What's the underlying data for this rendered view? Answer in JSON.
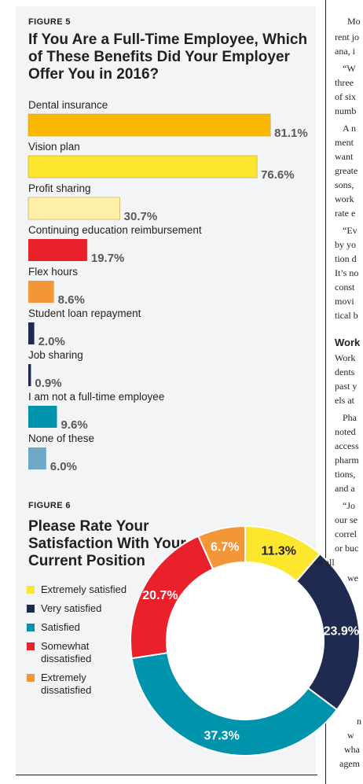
{
  "figure5": {
    "label": "FIGURE 5",
    "title": "If You Are a Full-Time Employee, Which of These Benefits Did Your Employer Offer You in 2016?"
  },
  "figure6": {
    "label": "FIGURE 6",
    "title": "Please Rate Your Satisfaction With Your Current Position"
  },
  "chart_data": [
    {
      "type": "bar",
      "orientation": "horizontal",
      "title": "If You Are a Full-Time Employee, Which of These Benefits Did Your Employer Offer You in 2016?",
      "unit": "%",
      "categories": [
        "Dental insurance",
        "Vision plan",
        "Profit sharing",
        "Continuing education reimbursement",
        "Flex hours",
        "Student loan repayment",
        "Job sharing",
        "I am not a full-time employee",
        "None of these"
      ],
      "values": [
        81.1,
        76.6,
        30.7,
        19.7,
        8.6,
        2.0,
        0.9,
        9.6,
        6.0
      ],
      "value_labels": [
        "81.1%",
        "76.6%",
        "30.7%",
        "19.7%",
        "8.6%",
        "2.0%",
        "0.9%",
        "9.6%",
        "6.0%"
      ],
      "colors": [
        "#fbb800",
        "#fce62e",
        "#fdf0a6",
        "#e8212b",
        "#f39638",
        "#1e2a4f",
        "#1e2a4f",
        "#0093ac",
        "#6fa8c6"
      ],
      "xlim": [
        0,
        100
      ],
      "grid": false
    },
    {
      "type": "pie",
      "subtype": "donut",
      "title": "Please Rate Your Satisfaction With Your Current Position",
      "unit": "%",
      "categories": [
        "Extremely satisfied",
        "Very satisfied",
        "Satisfied",
        "Somewhat dissatisfied",
        "Extremely dissatisfied"
      ],
      "values": [
        11.3,
        23.9,
        37.3,
        20.7,
        6.7
      ],
      "value_labels": [
        "11.3%",
        "23.9%",
        "37.3%",
        "20.7%",
        "6.7%"
      ],
      "colors": [
        "#fce62e",
        "#1e2a4f",
        "#0093ac",
        "#e8212b",
        "#f39638"
      ],
      "label_colors": [
        "#231f20",
        "#ffffff",
        "#ffffff",
        "#ffffff",
        "#ffffff"
      ],
      "legend_placement": "left"
    }
  ],
  "article": {
    "lines": [
      "Mo",
      "rent jo",
      "ana, i",
      "“W",
      "three",
      "of six",
      "numb",
      "A n",
      "ment",
      "want",
      "greate",
      "sons,",
      "work",
      "rate e",
      "“Ev",
      "by yo",
      "tion d",
      "It’s no",
      "const",
      "movi",
      "tical b",
      "Work",
      "Work",
      "dents",
      "past y",
      "els at",
      "Pha",
      "noted",
      "access",
      "pharm",
      "tions,",
      "and a",
      "“Jo",
      "our se",
      "correl",
      "or buc",
      "so all",
      "we",
      "n",
      "w",
      "wha",
      "agem"
    ]
  }
}
